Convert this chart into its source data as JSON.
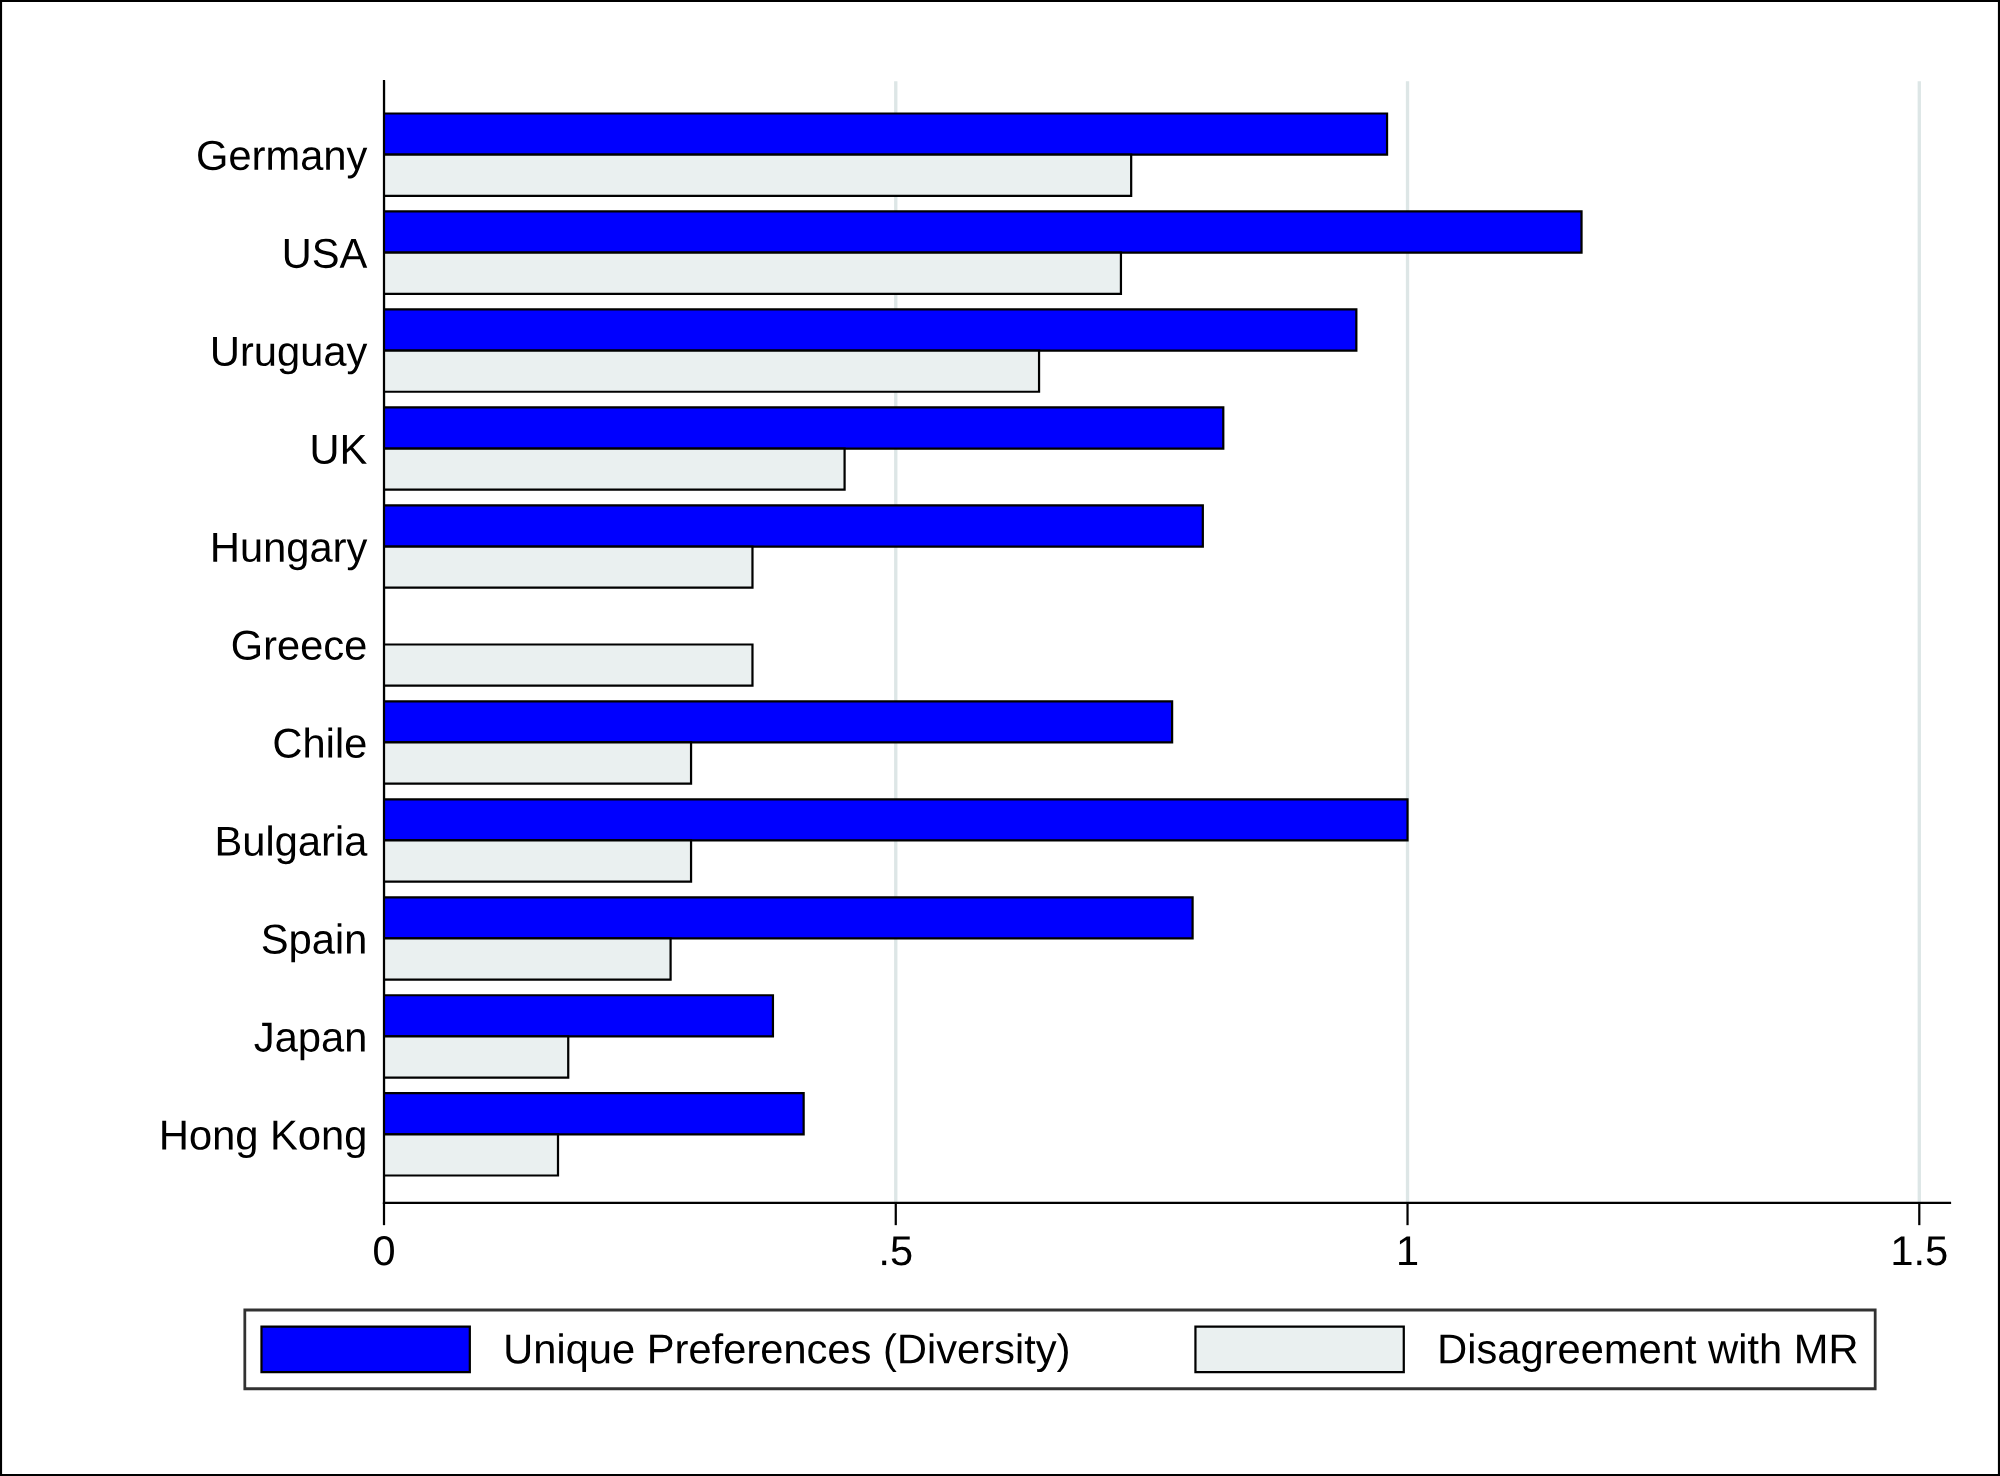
{
  "chart_data": {
    "type": "bar",
    "orientation": "horizontal",
    "categories": [
      "Germany",
      "USA",
      "Uruguay",
      "UK",
      "Hungary",
      "Greece",
      "Chile",
      "Bulgaria",
      "Spain",
      "Japan",
      "Hong Kong"
    ],
    "series": [
      {
        "name": "Unique Preferences (Diversity)",
        "color": "#0000ff",
        "values": [
          0.98,
          1.17,
          0.95,
          0.82,
          0.8,
          null,
          0.77,
          1.0,
          0.79,
          0.38,
          0.41
        ]
      },
      {
        "name": "Disagreement with MR",
        "color": "#eaf0f0",
        "values": [
          0.73,
          0.72,
          0.64,
          0.45,
          0.36,
          0.36,
          0.3,
          0.3,
          0.28,
          0.18,
          0.17
        ]
      }
    ],
    "xlim": [
      0,
      1.53
    ],
    "xticks": [
      0,
      {
        "value": 0.5,
        "label": ".5"
      },
      1,
      1.5
    ],
    "grid": "x",
    "legend": "bottom"
  }
}
